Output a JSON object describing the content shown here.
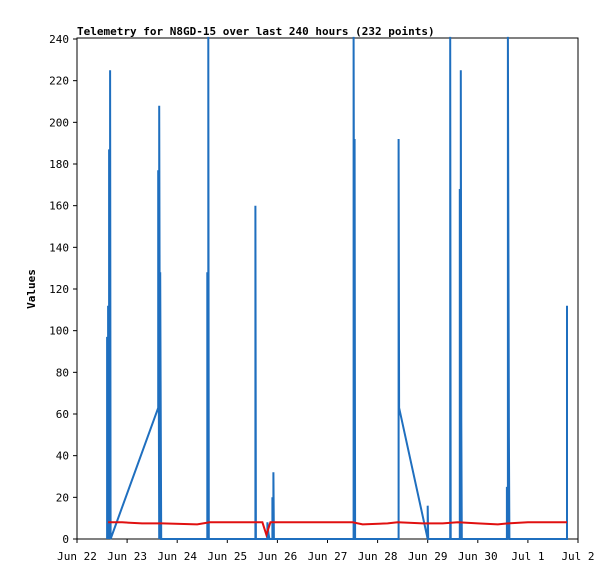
{
  "chart_data": {
    "type": "line",
    "title": "Telemetry for N8GD-15 over last 240 hours (232 points)",
    "xlabel": "",
    "ylabel": "Values",
    "x_tick_labels": [
      "Jun 22",
      "Jun 23",
      "Jun 24",
      "Jun 25",
      "Jun 26",
      "Jun 27",
      "Jun 28",
      "Jun 29",
      "Jun 30",
      "Jul 1",
      "Jul 2"
    ],
    "y_ticks": [
      0,
      20,
      40,
      60,
      80,
      100,
      120,
      140,
      160,
      180,
      200,
      220,
      240
    ],
    "xlim_days": [
      0,
      10
    ],
    "ylim": [
      0,
      240
    ],
    "grid": false,
    "legend": "none",
    "colors": {
      "blue_series": "#1f6fbf",
      "red_series": "#e01010"
    },
    "series": [
      {
        "color": "blue",
        "points": [
          [
            0.6,
            0
          ],
          [
            0.6,
            97
          ],
          [
            0.62,
            0
          ],
          [
            0.62,
            112
          ],
          [
            0.64,
            38
          ],
          [
            0.64,
            187
          ],
          [
            0.66,
            0
          ],
          [
            0.66,
            225
          ],
          [
            0.67,
            0
          ],
          [
            1.62,
            63
          ],
          [
            1.62,
            177
          ],
          [
            1.64,
            0
          ],
          [
            1.64,
            208
          ],
          [
            1.66,
            0
          ],
          [
            1.66,
            128
          ],
          [
            1.68,
            0
          ],
          [
            2.6,
            0
          ],
          [
            2.6,
            128
          ],
          [
            2.62,
            0
          ],
          [
            2.62,
            241
          ],
          [
            2.63,
            0
          ],
          [
            3.56,
            0
          ],
          [
            3.56,
            160
          ],
          [
            3.57,
            0
          ],
          [
            3.8,
            0
          ],
          [
            3.8,
            8
          ],
          [
            3.82,
            3
          ],
          [
            3.84,
            0
          ],
          [
            3.9,
            0
          ],
          [
            3.9,
            20
          ],
          [
            3.92,
            0
          ],
          [
            3.92,
            32
          ],
          [
            3.93,
            0
          ],
          [
            5.52,
            0
          ],
          [
            5.52,
            241
          ],
          [
            5.54,
            0
          ],
          [
            5.54,
            192
          ],
          [
            5.55,
            0
          ],
          [
            6.42,
            0
          ],
          [
            6.42,
            192
          ],
          [
            6.43,
            63
          ],
          [
            7.0,
            0
          ],
          [
            7.0,
            16
          ],
          [
            7.01,
            0
          ],
          [
            7.45,
            0
          ],
          [
            7.45,
            241
          ],
          [
            7.46,
            0
          ],
          [
            7.64,
            0
          ],
          [
            7.64,
            168
          ],
          [
            7.65,
            56
          ],
          [
            7.66,
            0
          ],
          [
            7.66,
            225
          ],
          [
            7.67,
            56
          ],
          [
            7.68,
            0
          ],
          [
            8.58,
            0
          ],
          [
            8.58,
            25
          ],
          [
            8.6,
            0
          ],
          [
            8.6,
            241
          ],
          [
            8.62,
            49
          ],
          [
            8.63,
            0
          ],
          [
            9.78,
            0
          ],
          [
            9.78,
            112
          ]
        ]
      },
      {
        "color": "red",
        "points": [
          [
            0.62,
            8
          ],
          [
            0.9,
            8
          ],
          [
            1.3,
            7.5
          ],
          [
            1.7,
            7.5
          ],
          [
            2.4,
            7
          ],
          [
            2.65,
            8
          ],
          [
            3.3,
            8
          ],
          [
            3.7,
            8
          ],
          [
            3.78,
            2
          ],
          [
            3.86,
            8
          ],
          [
            4.6,
            8
          ],
          [
            5.5,
            8
          ],
          [
            5.7,
            7
          ],
          [
            6.2,
            7.5
          ],
          [
            6.4,
            8
          ],
          [
            6.9,
            7.5
          ],
          [
            7.3,
            7.5
          ],
          [
            7.6,
            8
          ],
          [
            8.0,
            7.5
          ],
          [
            8.4,
            7
          ],
          [
            8.6,
            7.5
          ],
          [
            9.0,
            8
          ],
          [
            9.78,
            8
          ]
        ]
      }
    ]
  }
}
